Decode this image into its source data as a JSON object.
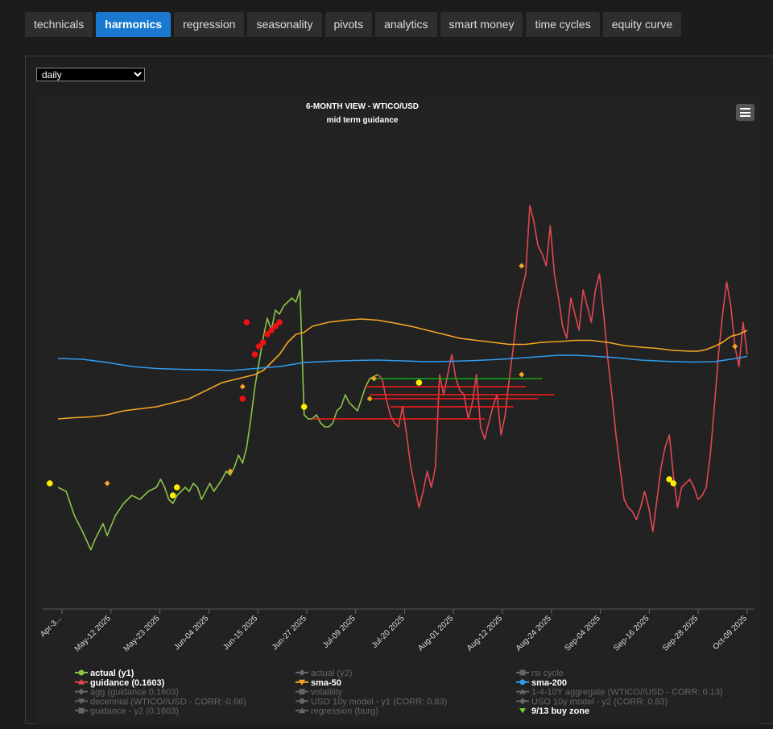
{
  "tabs": [
    {
      "label": "technicals",
      "active": false
    },
    {
      "label": "harmonics",
      "active": true
    },
    {
      "label": "regression",
      "active": false
    },
    {
      "label": "seasonality",
      "active": false
    },
    {
      "label": "pivots",
      "active": false
    },
    {
      "label": "analytics",
      "active": false
    },
    {
      "label": "smart money",
      "active": false
    },
    {
      "label": "time cycles",
      "active": false
    },
    {
      "label": "equity curve",
      "active": false
    }
  ],
  "period_select": {
    "value": "daily",
    "options": [
      "daily"
    ]
  },
  "menu_icon": "hamburger-menu-icon",
  "chart_data": {
    "type": "line",
    "title": "6-MONTH VIEW - WTICO/USD",
    "subtitle": "mid term guidance",
    "x_tick_labels": [
      "Apr-3...",
      "May-12 2025",
      "May-23 2025",
      "Jun-04 2025",
      "Jun-15 2025",
      "Jun-27 2025",
      "Jul-09 2025",
      "Jul-20 2025",
      "Aug-01 2025",
      "Aug-12 2025",
      "Aug-24 2025",
      "Sep-04 2025",
      "Sep-16 2025",
      "Sep-28 2025",
      "Oct-09 2025"
    ],
    "x_range_days": [
      0,
      168
    ],
    "y_range": [
      0,
      100
    ],
    "grid": false,
    "legend_position": "bottom",
    "legend": [
      {
        "name": "actual (y1)",
        "color": "#8bc34a",
        "marker": "circle",
        "active": true
      },
      {
        "name": "actual (y2)",
        "color": "#666666",
        "marker": "diamond",
        "active": false
      },
      {
        "name": "rsi cycle",
        "color": "#666666",
        "marker": "square",
        "active": false
      },
      {
        "name": "guidance (0.1603)",
        "color": "#e04850",
        "marker": "triangle",
        "active": true
      },
      {
        "name": "sma-50",
        "color": "#f5a623",
        "marker": "triangle-down",
        "active": true
      },
      {
        "name": "sma-200",
        "color": "#2f9cf0",
        "marker": "circle",
        "active": true
      },
      {
        "name": "agg (guidance 0.1603)",
        "color": "#666666",
        "marker": "diamond",
        "active": false
      },
      {
        "name": "volatility",
        "color": "#666666",
        "marker": "square",
        "active": false
      },
      {
        "name": "1-4-10Y aggregate (WTICO//USD - CORR: 0.13)",
        "color": "#666666",
        "marker": "triangle",
        "active": false
      },
      {
        "name": "decennial (WTICO//USD - CORR:-0.66)",
        "color": "#666666",
        "marker": "triangle-down",
        "active": false
      },
      {
        "name": "USO 10y model - y1 (CORR: 0.83)",
        "color": "#666666",
        "marker": "circle",
        "active": false
      },
      {
        "name": "USO 10y model - y2 (CORR: 0.83)",
        "color": "#666666",
        "marker": "diamond",
        "active": false
      },
      {
        "name": "guidance - y2 (0.1603)",
        "color": "#666666",
        "marker": "square",
        "active": false
      },
      {
        "name": "regression (burg)",
        "color": "#666666",
        "marker": "triangle",
        "active": false
      },
      {
        "name": "9/13 buy zone",
        "color": "#7cd62c",
        "marker": "triangle-down-green",
        "active": true
      }
    ],
    "series": [
      {
        "name": "actual (y1)",
        "color": "#8bc34a",
        "points": [
          [
            0,
            25
          ],
          [
            2,
            24
          ],
          [
            4,
            18
          ],
          [
            6,
            14
          ],
          [
            8,
            9.5
          ],
          [
            9,
            12
          ],
          [
            11,
            16
          ],
          [
            12,
            13
          ],
          [
            14,
            18
          ],
          [
            16,
            21
          ],
          [
            18,
            23
          ],
          [
            20,
            22
          ],
          [
            22,
            24
          ],
          [
            24,
            25
          ],
          [
            25,
            27
          ],
          [
            26,
            25
          ],
          [
            27,
            22
          ],
          [
            28,
            21
          ],
          [
            29,
            23
          ],
          [
            31,
            25
          ],
          [
            32,
            24
          ],
          [
            33,
            26
          ],
          [
            34,
            25
          ],
          [
            35,
            22
          ],
          [
            37,
            26
          ],
          [
            38,
            24
          ],
          [
            40,
            27
          ],
          [
            41,
            29
          ],
          [
            42,
            28
          ],
          [
            43,
            30
          ],
          [
            44,
            33
          ],
          [
            45,
            31
          ],
          [
            46,
            35
          ],
          [
            47,
            42
          ],
          [
            48,
            50
          ],
          [
            49,
            56
          ],
          [
            50,
            62
          ],
          [
            51,
            67
          ],
          [
            52,
            64
          ],
          [
            53,
            69
          ],
          [
            54,
            68
          ],
          [
            55,
            70
          ],
          [
            56,
            71
          ],
          [
            57,
            72
          ],
          [
            58,
            71
          ],
          [
            59,
            74
          ],
          [
            60,
            43
          ],
          [
            61,
            42
          ],
          [
            62,
            42
          ],
          [
            63,
            43
          ],
          [
            64,
            41
          ],
          [
            65,
            40
          ],
          [
            66,
            40
          ],
          [
            67,
            41
          ],
          [
            68,
            44
          ],
          [
            69,
            45
          ],
          [
            70,
            48
          ],
          [
            71,
            46
          ],
          [
            72,
            45
          ],
          [
            73,
            44
          ],
          [
            75,
            50
          ],
          [
            76,
            52
          ],
          [
            78,
            53
          ]
        ]
      },
      {
        "name": "guidance (0.1603)",
        "color": "#e04850",
        "points": [
          [
            78,
            53
          ],
          [
            79,
            52
          ],
          [
            80,
            47
          ],
          [
            81,
            43
          ],
          [
            82,
            41
          ],
          [
            83,
            40
          ],
          [
            84,
            45
          ],
          [
            85,
            38
          ],
          [
            86,
            30
          ],
          [
            87,
            25
          ],
          [
            88,
            20
          ],
          [
            89,
            24
          ],
          [
            90,
            29
          ],
          [
            91,
            25
          ],
          [
            92,
            30
          ],
          [
            93,
            53
          ],
          [
            94,
            48
          ],
          [
            95,
            53
          ],
          [
            96,
            58
          ],
          [
            97,
            52
          ],
          [
            98,
            49
          ],
          [
            99,
            48
          ],
          [
            100,
            42
          ],
          [
            101,
            46
          ],
          [
            102,
            53
          ],
          [
            103,
            40
          ],
          [
            104,
            37
          ],
          [
            105,
            41
          ],
          [
            106,
            45
          ],
          [
            107,
            48
          ],
          [
            108,
            38
          ],
          [
            109,
            43
          ],
          [
            110,
            52
          ],
          [
            111,
            60
          ],
          [
            112,
            69
          ],
          [
            113,
            74
          ],
          [
            114,
            78
          ],
          [
            115,
            95
          ],
          [
            116,
            91
          ],
          [
            117,
            85
          ],
          [
            118,
            83
          ],
          [
            119,
            80
          ],
          [
            120,
            90
          ],
          [
            121,
            78
          ],
          [
            122,
            72
          ],
          [
            123,
            65
          ],
          [
            124,
            62
          ],
          [
            125,
            72
          ],
          [
            126,
            68
          ],
          [
            127,
            64
          ],
          [
            128,
            74
          ],
          [
            129,
            70
          ],
          [
            130,
            66
          ],
          [
            131,
            74
          ],
          [
            132,
            78
          ],
          [
            133,
            68
          ],
          [
            134,
            57
          ],
          [
            135,
            48
          ],
          [
            136,
            38
          ],
          [
            137,
            30
          ],
          [
            138,
            22
          ],
          [
            139,
            20
          ],
          [
            140,
            19
          ],
          [
            141,
            17
          ],
          [
            142,
            20
          ],
          [
            143,
            24
          ],
          [
            144,
            20
          ],
          [
            145,
            14
          ],
          [
            146,
            22
          ],
          [
            147,
            30
          ],
          [
            148,
            35
          ],
          [
            149,
            38
          ],
          [
            150,
            28
          ],
          [
            151,
            20
          ],
          [
            152,
            25
          ],
          [
            153,
            26
          ],
          [
            154,
            27
          ],
          [
            155,
            25
          ],
          [
            156,
            22
          ],
          [
            157,
            23
          ],
          [
            158,
            25
          ],
          [
            159,
            33
          ],
          [
            160,
            45
          ],
          [
            161,
            58
          ],
          [
            162,
            68
          ],
          [
            163,
            76
          ],
          [
            164,
            70
          ],
          [
            165,
            60
          ],
          [
            166,
            55
          ],
          [
            167,
            66
          ],
          [
            168,
            58
          ]
        ]
      },
      {
        "name": "sma-50",
        "color": "#f5a623",
        "points": [
          [
            0,
            42
          ],
          [
            4,
            42.3
          ],
          [
            8,
            42.5
          ],
          [
            12,
            43
          ],
          [
            16,
            44
          ],
          [
            20,
            44.5
          ],
          [
            24,
            45
          ],
          [
            28,
            46
          ],
          [
            32,
            47
          ],
          [
            36,
            49
          ],
          [
            40,
            51
          ],
          [
            44,
            52
          ],
          [
            48,
            53
          ],
          [
            50,
            54
          ],
          [
            52,
            56
          ],
          [
            54,
            58
          ],
          [
            56,
            61
          ],
          [
            58,
            63
          ],
          [
            60,
            63.5
          ],
          [
            62,
            65
          ],
          [
            64,
            65.5
          ],
          [
            66,
            66
          ],
          [
            70,
            66.5
          ],
          [
            74,
            66.8
          ],
          [
            78,
            66.5
          ],
          [
            82,
            65.8
          ],
          [
            86,
            65
          ],
          [
            90,
            64
          ],
          [
            94,
            63
          ],
          [
            98,
            62
          ],
          [
            102,
            61.5
          ],
          [
            106,
            61
          ],
          [
            110,
            60.5
          ],
          [
            114,
            60.5
          ],
          [
            118,
            61
          ],
          [
            122,
            61.2
          ],
          [
            126,
            61.5
          ],
          [
            130,
            61.5
          ],
          [
            134,
            61
          ],
          [
            138,
            60.2
          ],
          [
            142,
            59.8
          ],
          [
            146,
            59.5
          ],
          [
            150,
            59
          ],
          [
            154,
            58.8
          ],
          [
            156,
            58.8
          ],
          [
            158,
            59.2
          ],
          [
            160,
            60
          ],
          [
            162,
            61
          ],
          [
            164,
            62.5
          ],
          [
            166,
            63
          ],
          [
            168,
            64
          ]
        ]
      },
      {
        "name": "sma-200",
        "color": "#2f9cf0",
        "points": [
          [
            0,
            57
          ],
          [
            6,
            56.8
          ],
          [
            12,
            56
          ],
          [
            18,
            55
          ],
          [
            24,
            54.5
          ],
          [
            30,
            54.3
          ],
          [
            36,
            54.2
          ],
          [
            42,
            54
          ],
          [
            48,
            54.5
          ],
          [
            54,
            55
          ],
          [
            60,
            56
          ],
          [
            66,
            56.3
          ],
          [
            72,
            56.5
          ],
          [
            78,
            56.6
          ],
          [
            84,
            56.4
          ],
          [
            90,
            56.2
          ],
          [
            96,
            56.3
          ],
          [
            102,
            56.5
          ],
          [
            108,
            56.8
          ],
          [
            114,
            57.2
          ],
          [
            118,
            57.5
          ],
          [
            122,
            57.8
          ],
          [
            126,
            57.8
          ],
          [
            130,
            57.6
          ],
          [
            136,
            57.2
          ],
          [
            142,
            56.6
          ],
          [
            148,
            56.3
          ],
          [
            154,
            56.1
          ],
          [
            160,
            56.2
          ],
          [
            164,
            56.8
          ],
          [
            168,
            57.5
          ]
        ]
      },
      {
        "name": "buy-sell levels",
        "color": "#ff1a1a",
        "segments": [
          [
            75,
            50,
            114,
            50
          ],
          [
            76,
            48,
            121,
            48
          ],
          [
            62,
            42,
            104,
            42
          ],
          [
            81,
            45,
            111,
            45
          ],
          [
            77,
            47,
            117,
            47
          ]
        ]
      },
      {
        "name": "buy-sell levels (green)",
        "color": "#11a811",
        "segments": [
          [
            77,
            52,
            118,
            52
          ]
        ]
      }
    ],
    "markers": [
      {
        "series": "yellow-circle",
        "color": "#ffee00",
        "points": [
          [
            -2,
            26
          ],
          [
            28,
            23
          ],
          [
            29,
            25
          ],
          [
            60,
            45
          ],
          [
            88,
            51
          ],
          [
            149,
            27
          ],
          [
            150,
            26
          ]
        ]
      },
      {
        "series": "red-circle",
        "color": "#ee1111",
        "points": [
          [
            45,
            47
          ],
          [
            46,
            66
          ],
          [
            48,
            58
          ],
          [
            49,
            60
          ],
          [
            50,
            61
          ],
          [
            51,
            63
          ],
          [
            52,
            64
          ],
          [
            53,
            65
          ],
          [
            54,
            66
          ]
        ]
      },
      {
        "series": "orange-diamond",
        "color": "#f5a623",
        "points": [
          [
            12,
            26
          ],
          [
            42,
            29
          ],
          [
            45,
            50
          ],
          [
            76,
            47
          ],
          [
            77,
            52
          ],
          [
            113,
            80
          ],
          [
            113,
            53
          ],
          [
            165,
            60
          ]
        ]
      }
    ]
  }
}
